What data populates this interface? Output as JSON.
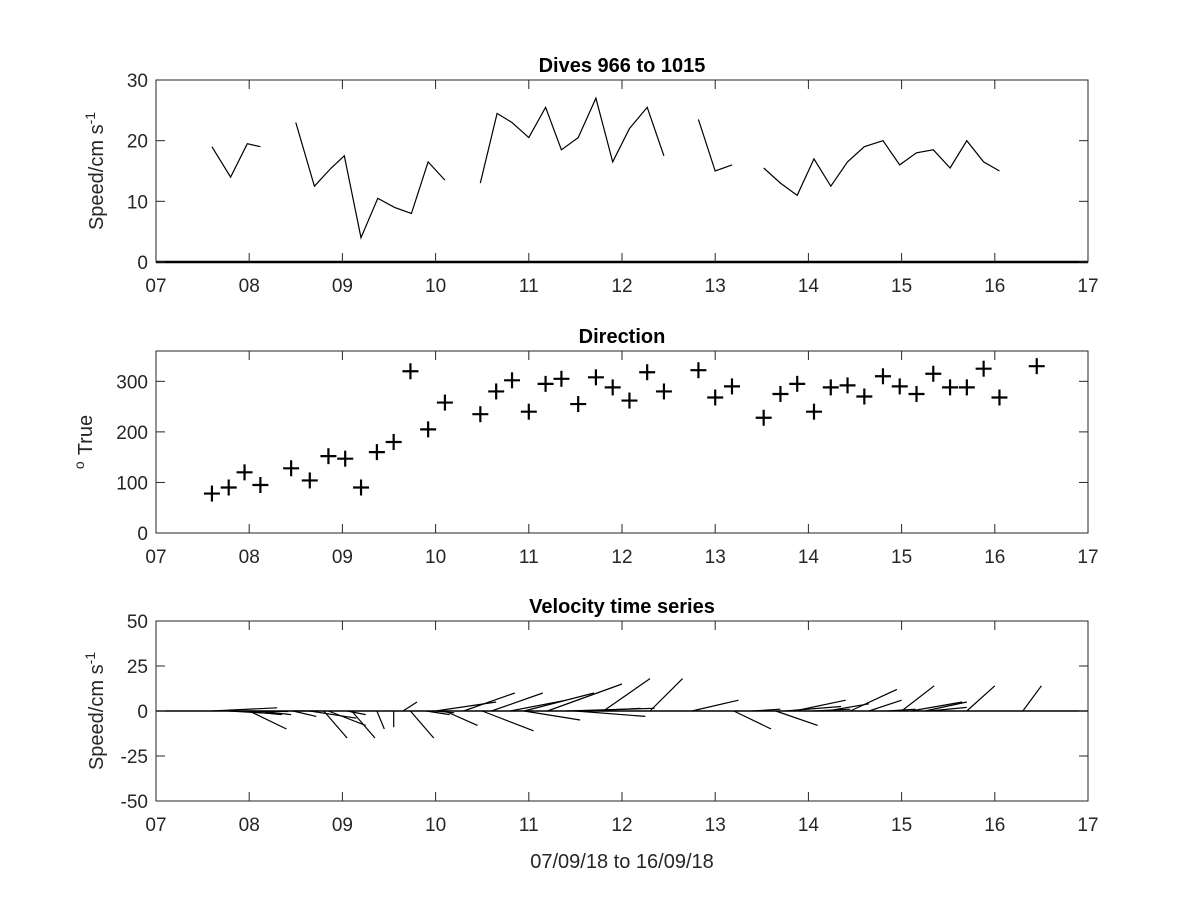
{
  "chart_data": [
    {
      "type": "line",
      "title": "Dives 966 to 1015",
      "ylabel": "Speed/cm s",
      "ylabel_exponent": "-1",
      "xlim": [
        7,
        17
      ],
      "ylim": [
        0,
        30
      ],
      "xticks": [
        "07",
        "08",
        "09",
        "10",
        "11",
        "12",
        "13",
        "14",
        "15",
        "16",
        "17"
      ],
      "yticks": [
        "0",
        "10",
        "20",
        "30"
      ],
      "series": [
        {
          "x": [
            7.6,
            7.8,
            7.98,
            8.12
          ],
          "y": [
            19,
            14,
            19.5,
            19
          ]
        },
        {
          "x": [
            8.5,
            8.7,
            8.88,
            9.02,
            9.2,
            9.38,
            9.56,
            9.74,
            9.92,
            10.1
          ],
          "y": [
            23,
            12.5,
            15.5,
            17.5,
            4,
            10.5,
            9,
            8,
            16.5,
            13.5
          ]
        },
        {
          "x": [
            10.48,
            10.66,
            10.82,
            11.0,
            11.18,
            11.35,
            11.53,
            11.72,
            11.9,
            12.08,
            12.27,
            12.45
          ],
          "y": [
            13,
            24.5,
            23,
            20.5,
            25.5,
            18.5,
            20.5,
            27,
            16.5,
            22,
            25.5,
            17.5
          ]
        },
        {
          "x": [
            12.82,
            13.0,
            13.18
          ],
          "y": [
            23.5,
            15,
            16
          ]
        },
        {
          "x": [
            13.52,
            13.7,
            13.88,
            14.06,
            14.24,
            14.42,
            14.6,
            14.8,
            14.98,
            15.16,
            15.34,
            15.52,
            15.7,
            15.88,
            16.05
          ],
          "y": [
            15.5,
            13,
            11,
            17,
            12.5,
            16.5,
            19,
            20,
            16,
            18,
            18.5,
            15.5,
            20,
            16.5,
            15
          ]
        }
      ]
    },
    {
      "type": "scatter",
      "title": "Direction",
      "ylabel": "True",
      "ylabel_prefix": "o",
      "xlim": [
        7,
        17
      ],
      "ylim": [
        0,
        360
      ],
      "xticks": [
        "07",
        "08",
        "09",
        "10",
        "11",
        "12",
        "13",
        "14",
        "15",
        "16",
        "17"
      ],
      "yticks": [
        "0",
        "100",
        "200",
        "300"
      ],
      "marker": "+",
      "x": [
        7.6,
        7.78,
        7.95,
        8.12,
        8.45,
        8.65,
        8.85,
        9.03,
        9.2,
        9.37,
        9.55,
        9.73,
        9.92,
        10.1,
        10.48,
        10.65,
        10.82,
        11.0,
        11.18,
        11.35,
        11.53,
        11.72,
        11.9,
        12.08,
        12.27,
        12.45,
        12.82,
        13.0,
        13.18,
        13.52,
        13.7,
        13.88,
        14.06,
        14.24,
        14.42,
        14.6,
        14.8,
        14.98,
        15.16,
        15.34,
        15.52,
        15.7,
        15.88,
        16.05,
        16.45
      ],
      "y": [
        78,
        90,
        120,
        95,
        128,
        104,
        152,
        147,
        90,
        160,
        180,
        320,
        205,
        258,
        235,
        280,
        302,
        240,
        295,
        305,
        255,
        308,
        288,
        262,
        318,
        280,
        322,
        268,
        290,
        228,
        275,
        295,
        240,
        288,
        292,
        270,
        310,
        290,
        275,
        315,
        288,
        288,
        325,
        268,
        330
      ]
    },
    {
      "type": "quiver",
      "title": "Velocity time series",
      "ylabel": "Speed/cm s",
      "ylabel_exponent": "-1",
      "xlabel": "07/09/18 to 16/09/18",
      "xlim": [
        7,
        17
      ],
      "ylim": [
        -50,
        50
      ],
      "xticks": [
        "07",
        "08",
        "09",
        "10",
        "11",
        "12",
        "13",
        "14",
        "15",
        "16",
        "17"
      ],
      "yticks": [
        "-50",
        "-25",
        "0",
        "25",
        "50"
      ],
      "vectors": [
        {
          "x": 7.6,
          "u": 0.7,
          "v": 1.8
        },
        {
          "x": 7.78,
          "u": 0.5,
          "v": -1.5
        },
        {
          "x": 7.95,
          "u": 0.4,
          "v": -2.0
        },
        {
          "x": 7.97,
          "u": 0.45,
          "v": -0.3
        },
        {
          "x": 8.0,
          "u": 0.4,
          "v": -10
        },
        {
          "x": 8.1,
          "u": 0.35,
          "v": -2
        },
        {
          "x": 8.45,
          "u": 0.3,
          "v": 0
        },
        {
          "x": 8.47,
          "u": 0.25,
          "v": -3
        },
        {
          "x": 8.65,
          "u": 0.5,
          "v": -4
        },
        {
          "x": 8.85,
          "u": 0.4,
          "v": -8
        },
        {
          "x": 8.8,
          "u": 0.25,
          "v": -15
        },
        {
          "x": 9.05,
          "u": 0.2,
          "v": -2
        },
        {
          "x": 9.1,
          "u": 0.25,
          "v": -15
        },
        {
          "x": 9.37,
          "u": 0.08,
          "v": -10
        },
        {
          "x": 9.55,
          "u": 0.0,
          "v": -9
        },
        {
          "x": 9.65,
          "u": 0.15,
          "v": 5
        },
        {
          "x": 9.73,
          "u": 0.25,
          "v": -15
        },
        {
          "x": 9.9,
          "u": 0.25,
          "v": -2
        },
        {
          "x": 10.0,
          "u": 0.2,
          "v": -1
        },
        {
          "x": 10.1,
          "u": 0.35,
          "v": -8
        },
        {
          "x": 10.0,
          "u": 0.65,
          "v": 5
        },
        {
          "x": 10.3,
          "u": 0.55,
          "v": 10
        },
        {
          "x": 10.5,
          "u": 0.55,
          "v": -11
        },
        {
          "x": 10.6,
          "u": 0.55,
          "v": 10
        },
        {
          "x": 10.8,
          "u": 0.6,
          "v": 6
        },
        {
          "x": 10.95,
          "u": 0.6,
          "v": -5
        },
        {
          "x": 10.95,
          "u": 0.75,
          "v": 10
        },
        {
          "x": 11.2,
          "u": 0.8,
          "v": 15
        },
        {
          "x": 11.4,
          "u": 0.95,
          "v": 1.5
        },
        {
          "x": 11.5,
          "u": 0.75,
          "v": -3
        },
        {
          "x": 11.65,
          "u": 0.55,
          "v": 1.5
        },
        {
          "x": 11.8,
          "u": 0.5,
          "v": 18
        },
        {
          "x": 12.3,
          "u": 0.35,
          "v": 18
        },
        {
          "x": 12.75,
          "u": 0.5,
          "v": 6
        },
        {
          "x": 13.2,
          "u": 0.4,
          "v": -10
        },
        {
          "x": 13.4,
          "u": 0.3,
          "v": 1
        },
        {
          "x": 13.65,
          "u": 0.45,
          "v": -8
        },
        {
          "x": 13.75,
          "u": 0.6,
          "v": 2.5
        },
        {
          "x": 13.85,
          "u": 0.55,
          "v": 6
        },
        {
          "x": 14.05,
          "u": 0.4,
          "v": 1
        },
        {
          "x": 14.2,
          "u": 0.45,
          "v": 4
        },
        {
          "x": 14.45,
          "u": 0.5,
          "v": 12
        },
        {
          "x": 14.65,
          "u": 0.35,
          "v": 6
        },
        {
          "x": 14.85,
          "u": 0.3,
          "v": 1
        },
        {
          "x": 15.0,
          "u": 0.35,
          "v": 14
        },
        {
          "x": 15.1,
          "u": 0.55,
          "v": 5
        },
        {
          "x": 15.25,
          "u": 0.45,
          "v": 5
        },
        {
          "x": 15.3,
          "u": 0.4,
          "v": 2
        },
        {
          "x": 15.7,
          "u": 0.3,
          "v": 14
        },
        {
          "x": 16.3,
          "u": 0.2,
          "v": 14
        }
      ]
    }
  ]
}
